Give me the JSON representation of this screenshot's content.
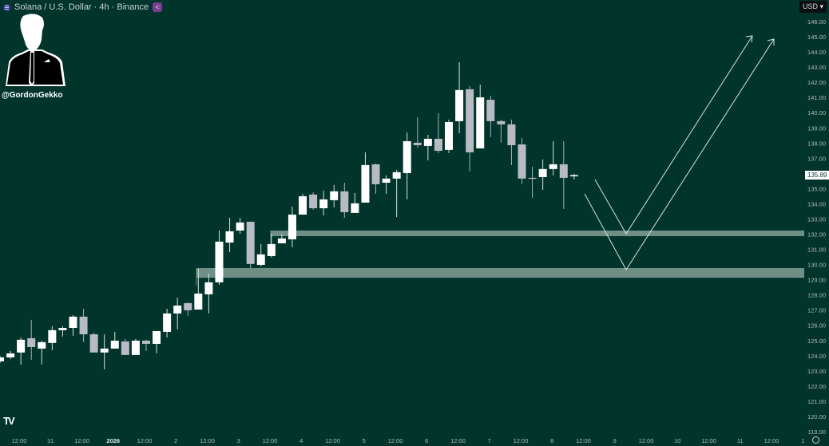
{
  "header": {
    "title": "Solana / U.S. Dollar · 4h · Binance",
    "currency": "USD ▾",
    "share_icon": "share-icon",
    "symbol_icon": "solana-icon"
  },
  "watermark": {
    "handle": "@GordonGekko",
    "logo": "TV"
  },
  "colors": {
    "background": "#01352c",
    "up": "#ffffff",
    "down": "#b9bbc4",
    "zone": "#6f8f86",
    "drawing": "#d7e3df"
  },
  "chart_data": {
    "type": "candlestick",
    "title": "Solana / U.S. Dollar · 4h · Binance",
    "ylim": [
      119,
      146
    ],
    "y_ticks": [
      "146.00",
      "145.00",
      "144.00",
      "143.00",
      "142.00",
      "141.00",
      "140.00",
      "139.00",
      "138.00",
      "137.00",
      "135.00",
      "134.00",
      "133.00",
      "132.00",
      "131.00",
      "130.00",
      "129.00",
      "128.00",
      "127.00",
      "126.00",
      "125.00",
      "124.00",
      "123.00",
      "122.00",
      "121.00",
      "120.00",
      "119.00"
    ],
    "x_ticks": [
      "12:00",
      "31",
      "12:00",
      "2026",
      "12:00",
      "2",
      "12:00",
      "3",
      "12:00",
      "4",
      "12:00",
      "5",
      "12:00",
      "6",
      "12:00",
      "7",
      "12:00",
      "8",
      "12:00",
      "9",
      "12:00",
      "10",
      "12:00",
      "11",
      "12:00",
      "1"
    ],
    "last_price": "135.89",
    "ohlc_fields": [
      "open",
      "high",
      "low",
      "close"
    ],
    "candles": [
      [
        123.63,
        124.0,
        123.52,
        123.89
      ],
      [
        123.89,
        124.31,
        123.79,
        124.15
      ],
      [
        124.21,
        125.2,
        123.42,
        125.05
      ],
      [
        125.15,
        126.36,
        123.73,
        124.57
      ],
      [
        124.47,
        124.99,
        123.42,
        124.89
      ],
      [
        124.84,
        125.94,
        124.36,
        125.68
      ],
      [
        125.68,
        125.94,
        125.26,
        125.83
      ],
      [
        125.83,
        126.67,
        125.31,
        126.57
      ],
      [
        126.57,
        127.09,
        124.89,
        125.41
      ],
      [
        125.41,
        125.52,
        124.21,
        124.21
      ],
      [
        124.21,
        125.41,
        123.1,
        124.47
      ],
      [
        124.47,
        125.57,
        124.47,
        124.99
      ],
      [
        124.94,
        125.1,
        124.05,
        124.05
      ],
      [
        124.05,
        125.1,
        124.05,
        124.99
      ],
      [
        124.99,
        125.05,
        124.31,
        124.78
      ],
      [
        124.78,
        125.62,
        124.15,
        125.62
      ],
      [
        125.57,
        127.09,
        125.2,
        126.78
      ],
      [
        126.78,
        127.83,
        125.73,
        127.3
      ],
      [
        127.46,
        127.51,
        126.62,
        126.99
      ],
      [
        127.04,
        129.72,
        127.04,
        128.09
      ],
      [
        128.04,
        129.41,
        126.78,
        128.83
      ],
      [
        128.83,
        132.24,
        128.67,
        131.51
      ],
      [
        131.45,
        133.08,
        130.82,
        132.19
      ],
      [
        132.24,
        133.08,
        132.03,
        132.77
      ],
      [
        132.82,
        132.82,
        129.77,
        130.04
      ],
      [
        129.98,
        131.35,
        129.88,
        130.67
      ],
      [
        130.56,
        132.03,
        130.46,
        131.35
      ],
      [
        131.4,
        132.03,
        131.4,
        131.72
      ],
      [
        131.66,
        133.82,
        131.14,
        133.29
      ],
      [
        133.29,
        134.66,
        133.29,
        134.5
      ],
      [
        134.61,
        134.76,
        133.61,
        133.71
      ],
      [
        133.71,
        134.87,
        133.24,
        134.29
      ],
      [
        134.24,
        135.24,
        133.76,
        134.82
      ],
      [
        134.82,
        135.39,
        133.08,
        133.45
      ],
      [
        133.4,
        134.71,
        133.4,
        134.03
      ],
      [
        134.08,
        137.39,
        134.08,
        136.55
      ],
      [
        136.6,
        136.65,
        134.66,
        135.29
      ],
      [
        135.39,
        135.87,
        134.66,
        135.66
      ],
      [
        135.66,
        136.23,
        133.13,
        136.08
      ],
      [
        136.02,
        138.7,
        134.29,
        138.12
      ],
      [
        138.02,
        139.7,
        137.7,
        137.86
      ],
      [
        137.81,
        138.54,
        136.86,
        138.28
      ],
      [
        138.28,
        139.96,
        137.34,
        137.49
      ],
      [
        137.55,
        139.54,
        137.34,
        139.38
      ],
      [
        139.44,
        143.32,
        138.65,
        141.49
      ],
      [
        141.54,
        141.75,
        136.13,
        137.39
      ],
      [
        137.65,
        141.85,
        137.65,
        141.01
      ],
      [
        140.85,
        141.12,
        138.39,
        139.44
      ],
      [
        139.44,
        139.54,
        138.02,
        139.23
      ],
      [
        139.23,
        139.54,
        136.55,
        137.86
      ],
      [
        137.91,
        138.33,
        135.29,
        135.66
      ],
      [
        135.71,
        136.44,
        134.4,
        135.66
      ],
      [
        135.76,
        136.92,
        134.92,
        136.29
      ],
      [
        136.29,
        138.12,
        135.87,
        136.6
      ],
      [
        136.6,
        138.12,
        133.66,
        135.71
      ],
      [
        135.81,
        135.97,
        135.6,
        135.89
      ]
    ],
    "zones": [
      {
        "name": "upper-demand-zone",
        "top": 132.24,
        "bottom": 131.87
      },
      {
        "name": "lower-demand-zone",
        "top": 129.77,
        "bottom": 129.13
      }
    ],
    "grid": false
  }
}
